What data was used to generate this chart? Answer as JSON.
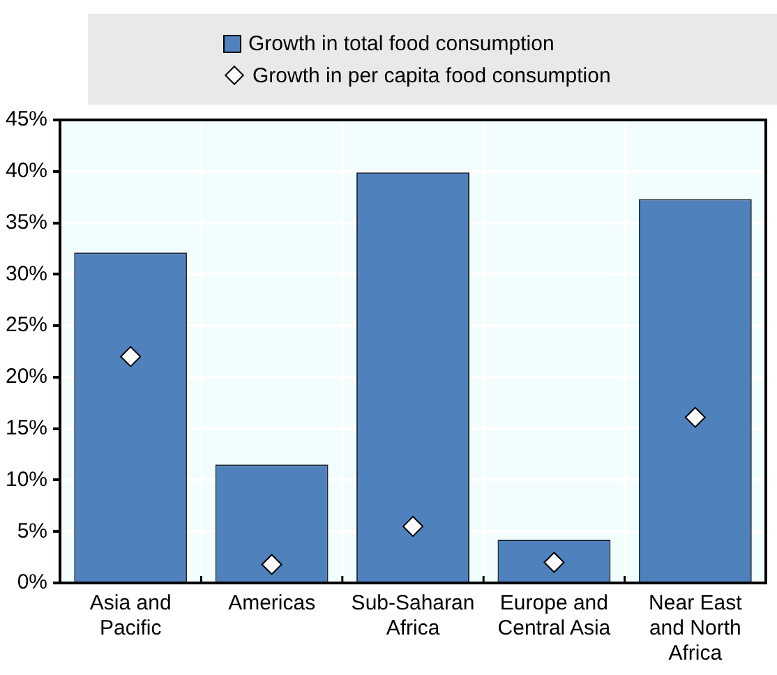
{
  "chart_data": {
    "type": "bar",
    "categories": [
      "Asia and Pacific",
      "Americas",
      "Sub-Saharan Africa",
      "Europe and Central Asia",
      "Near East and North Africa"
    ],
    "series": [
      {
        "name": "Growth in total food consumption",
        "color": "#4f81bd",
        "values": [
          32.1,
          11.5,
          39.9,
          4.2,
          37.3
        ]
      },
      {
        "name": "Growth in per capita food consumption",
        "type": "scatter",
        "color": "#ffffff",
        "marker": "diamond",
        "values": [
          22.0,
          1.8,
          5.5,
          2.0,
          16.1
        ]
      }
    ],
    "ylim": [
      0,
      45
    ],
    "yticks": [
      {
        "value": 0,
        "label": "0%"
      },
      {
        "value": 5,
        "label": "5%"
      },
      {
        "value": 10,
        "label": "10%"
      },
      {
        "value": 15,
        "label": "15%"
      },
      {
        "value": 20,
        "label": "20%"
      },
      {
        "value": 25,
        "label": "25%"
      },
      {
        "value": 30,
        "label": "30%"
      },
      {
        "value": 35,
        "label": "35%"
      },
      {
        "value": 40,
        "label": "40%"
      },
      {
        "value": 45,
        "label": "45%"
      }
    ],
    "grid": true,
    "legend": "top"
  }
}
